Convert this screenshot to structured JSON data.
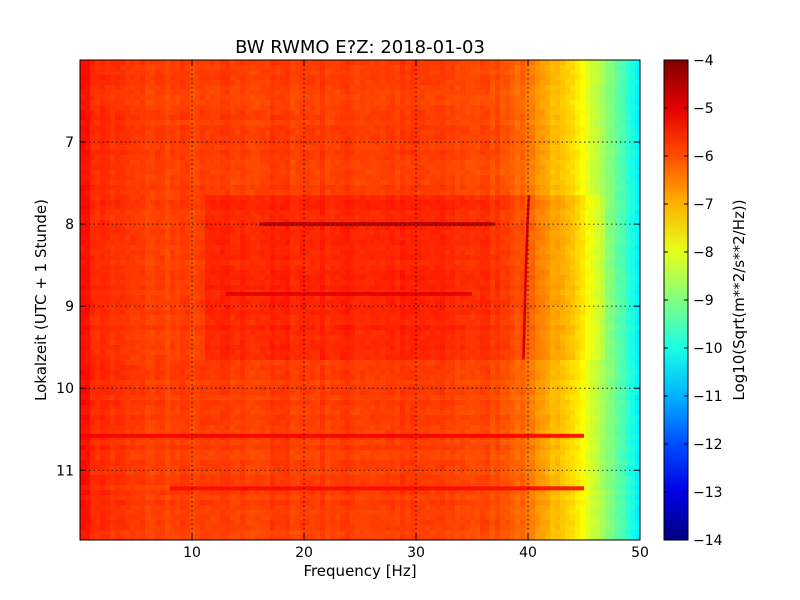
{
  "chart_data": {
    "type": "heatmap",
    "title": "BW RWMO E?Z: 2018-01-03",
    "xlabel": "Frequency [Hz]",
    "ylabel": "Lokalzeit (UTC + 1 Stunde)",
    "xlim": [
      0,
      50
    ],
    "ylim": [
      11.85,
      6.0
    ],
    "xticks": [
      10,
      20,
      30,
      40,
      50
    ],
    "yticks": [
      7,
      8,
      9,
      10,
      11
    ],
    "grid": true,
    "colormap": "jet",
    "colorbar": {
      "label": "Log10(Sqrt(m**2/s**2/Hz))",
      "range": [
        -14,
        -4
      ],
      "ticks": [
        -4,
        -5,
        -6,
        -7,
        -8,
        -9,
        -10,
        -11,
        -12,
        -13,
        -14
      ]
    },
    "background_level_by_frequency": {
      "frequency": [
        0,
        1,
        5,
        10,
        20,
        30,
        38,
        40,
        42,
        44,
        46,
        48,
        50
      ],
      "level": [
        -5.2,
        -5.6,
        -5.85,
        -5.9,
        -5.85,
        -5.85,
        -6.0,
        -6.4,
        -7.0,
        -7.5,
        -8.2,
        -9.3,
        -10.4
      ]
    },
    "features": [
      {
        "type": "band",
        "time_range": [
          7.65,
          9.65
        ],
        "frequency_range": [
          11,
          47
        ],
        "level_offset": 0.25
      },
      {
        "type": "line",
        "time": 8.0,
        "frequency_range": [
          16,
          37
        ],
        "level": -4.6
      },
      {
        "type": "line",
        "time": 8.85,
        "frequency_range": [
          13,
          35
        ],
        "level": -5.0
      },
      {
        "type": "line",
        "time": 10.58,
        "frequency_range": [
          0,
          45
        ],
        "level": -5.2
      },
      {
        "type": "line",
        "time": 11.22,
        "frequency_range": [
          8,
          45
        ],
        "level": -5.3
      },
      {
        "type": "curve",
        "time_range": [
          7.65,
          9.65
        ],
        "frequency_range": [
          39.6,
          40.1
        ],
        "level": -4.8
      }
    ]
  }
}
